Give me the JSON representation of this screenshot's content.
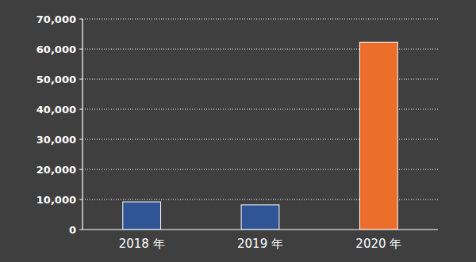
{
  "chart_data": {
    "type": "bar",
    "categories": [
      "2018 年",
      "2019 年",
      "2020 年"
    ],
    "values": [
      9200,
      8200,
      62300
    ],
    "colors": [
      "#2f5597",
      "#2f5597",
      "#ed6d2b"
    ],
    "ylim": [
      0,
      70000
    ],
    "yticks": [
      0,
      {
        "value": 10000,
        "label": "10,000"
      },
      {
        "value": 20000,
        "label": "20,000"
      },
      {
        "value": 30000,
        "label": "30,000"
      },
      {
        "value": 40000,
        "label": "40,000"
      },
      {
        "value": 50000,
        "label": "50,000"
      },
      {
        "value": 60000,
        "label": "60,000"
      },
      {
        "value": 70000,
        "label": "70,000"
      }
    ],
    "grid": true
  }
}
